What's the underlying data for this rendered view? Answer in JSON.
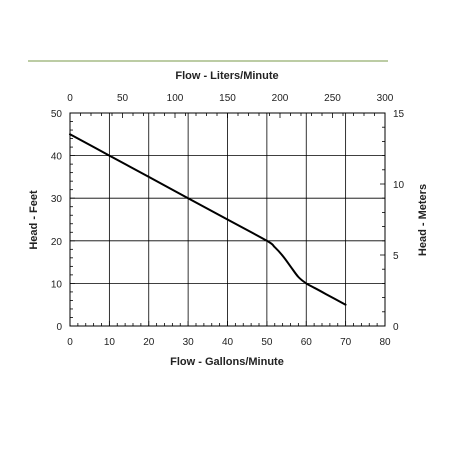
{
  "colors": {
    "rule": "#7a9a4a",
    "grid": "#000000",
    "curve": "#000000",
    "text": "#222222"
  },
  "chart_data": {
    "type": "line",
    "title": "",
    "xlabel": "Flow - Gallons/Minute",
    "ylabel": "Head - Feet",
    "x2label": "Flow - Liters/Minute",
    "y2label": "Head - Meters",
    "xlim": [
      0,
      80
    ],
    "ylim": [
      0,
      50
    ],
    "x2lim": [
      0,
      300
    ],
    "y2lim": [
      0,
      15
    ],
    "xticks": [
      0,
      10,
      20,
      30,
      40,
      50,
      60,
      70,
      80
    ],
    "yticks": [
      0,
      10,
      20,
      30,
      40,
      50
    ],
    "x2ticks": [
      0,
      50,
      100,
      150,
      200,
      250,
      300
    ],
    "y2ticks": [
      0,
      5,
      10,
      15
    ],
    "grid": true,
    "series": [
      {
        "x": [
          0,
          10,
          20,
          30,
          40,
          50,
          52,
          54,
          56,
          58,
          60,
          62,
          65,
          70
        ],
        "values": [
          45,
          40,
          35,
          30,
          25,
          20,
          18.5,
          16.5,
          14,
          11.5,
          10,
          9,
          7.5,
          5
        ]
      }
    ]
  }
}
